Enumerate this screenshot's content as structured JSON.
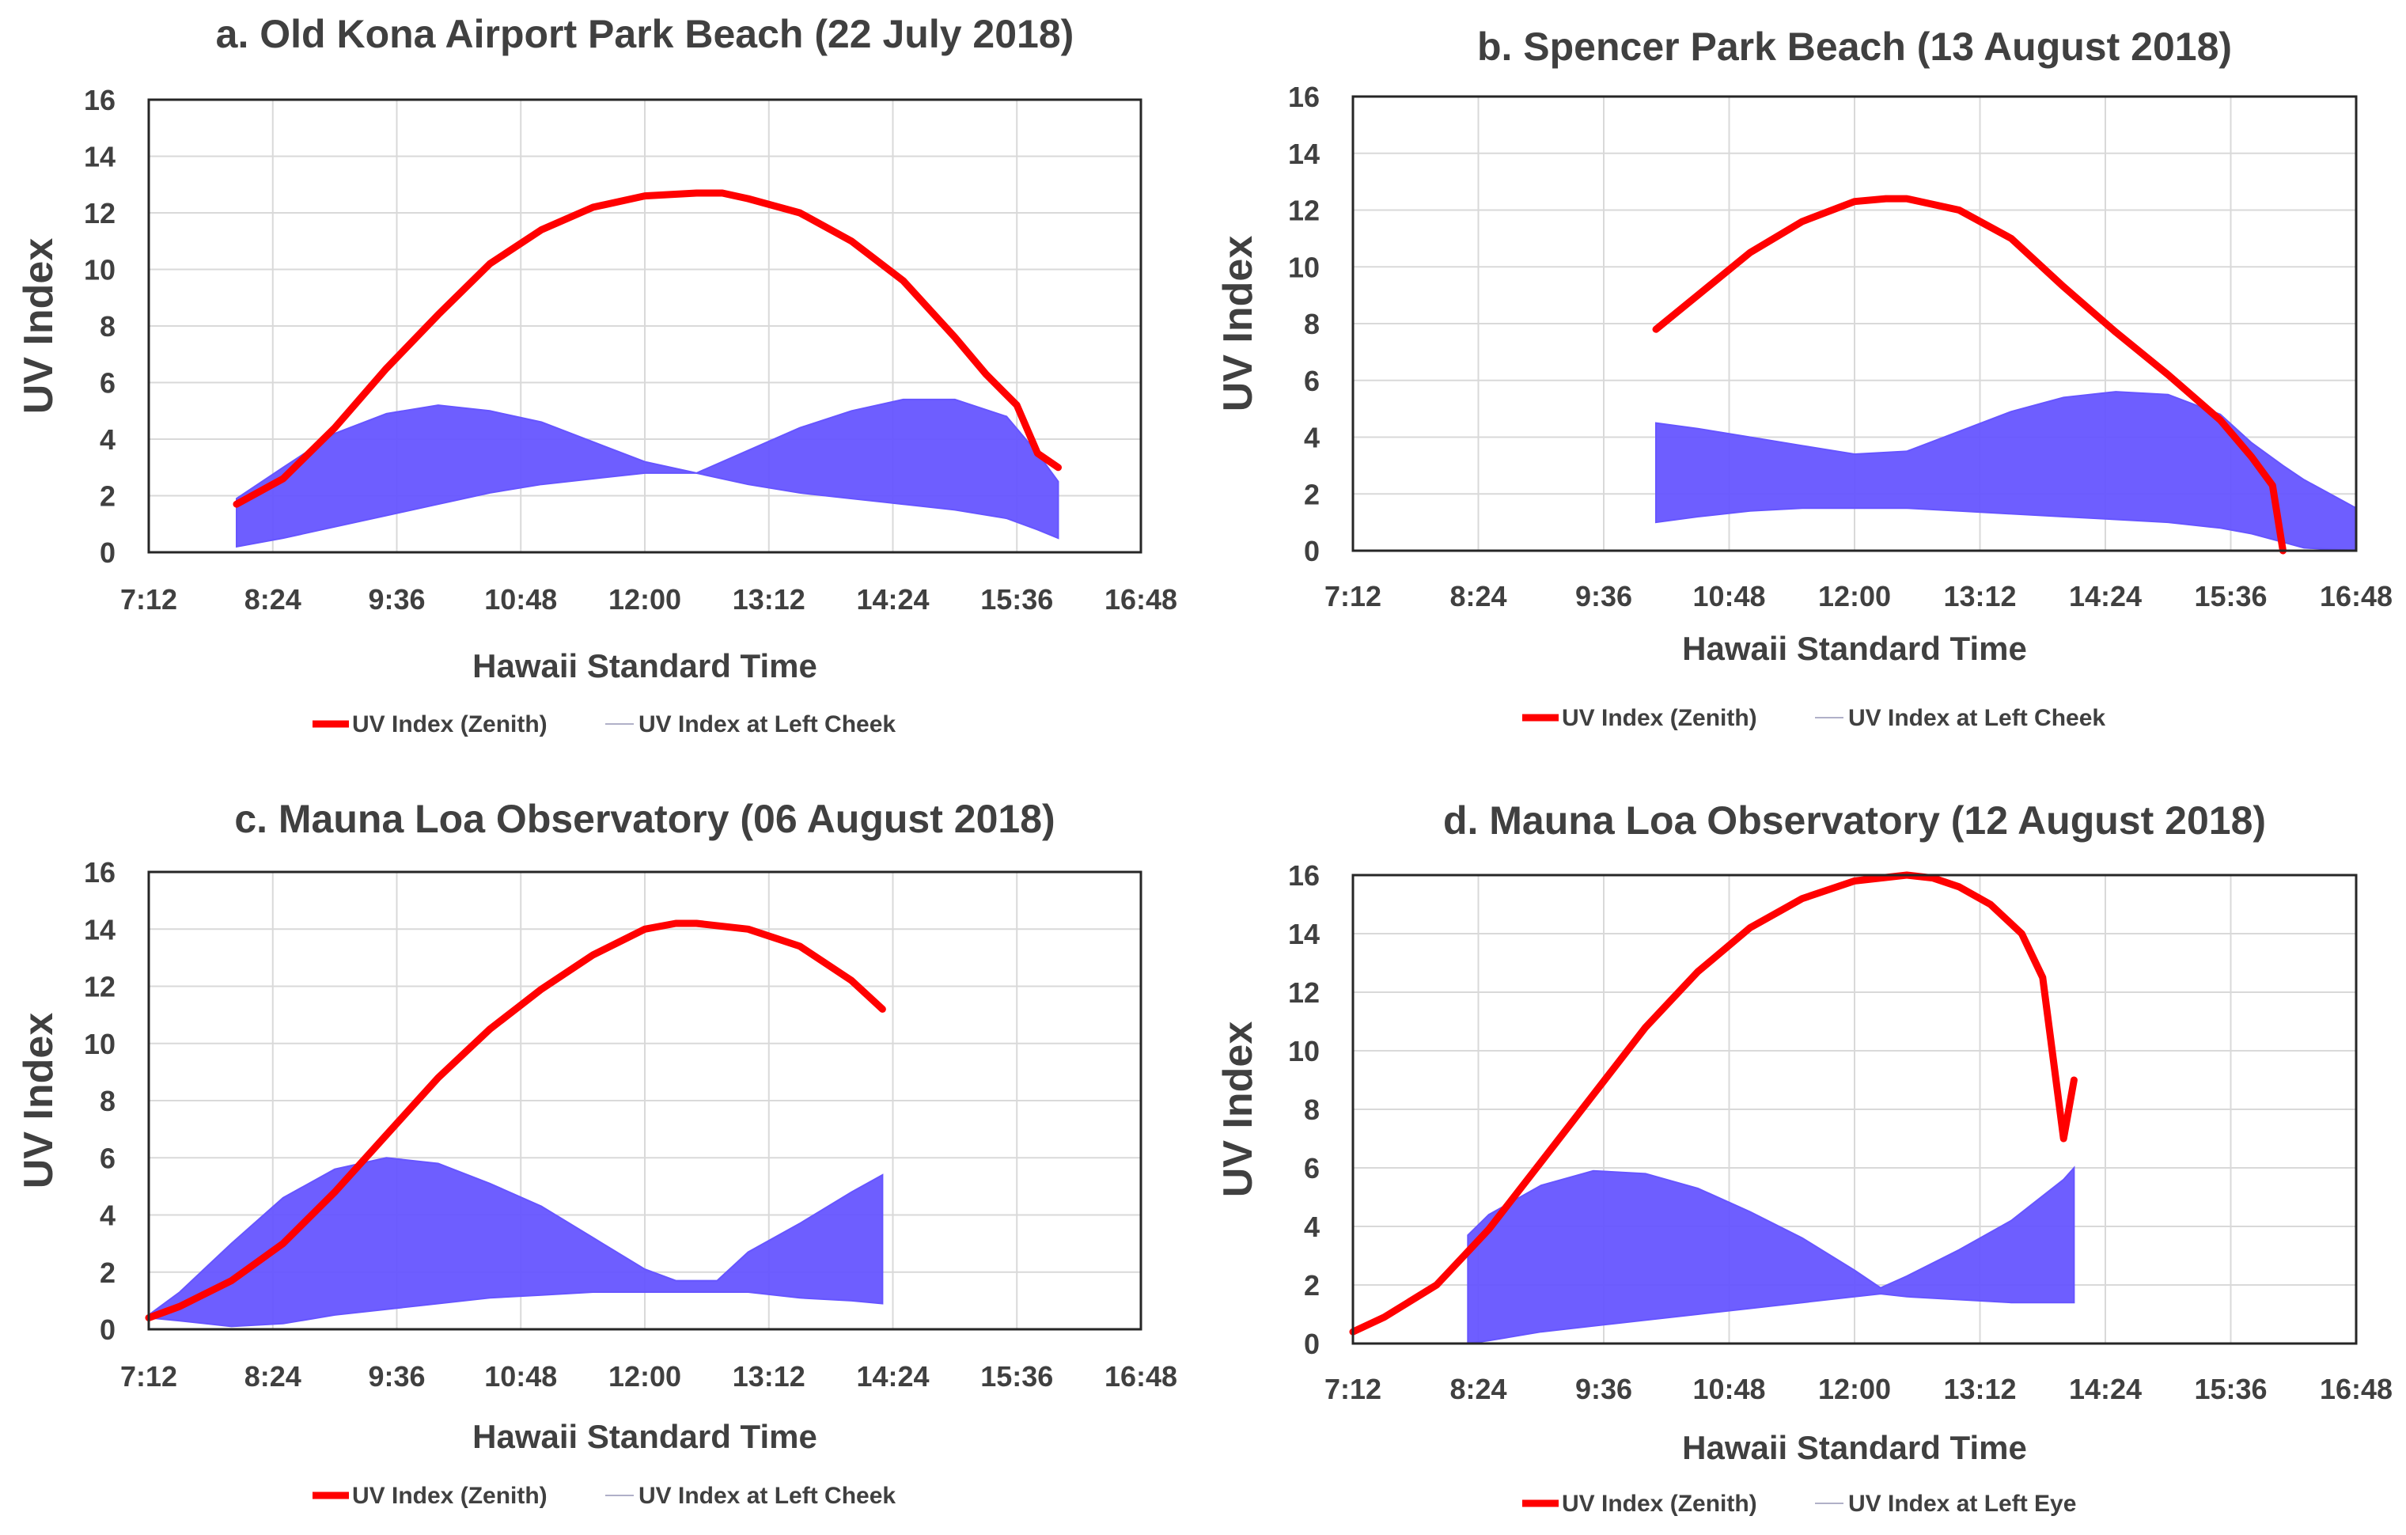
{
  "colors": {
    "zenith": "#ff0000",
    "facial": "#6655ff",
    "text": "#404040",
    "grid": "#d9d9d9"
  },
  "chart_data": [
    {
      "type": "line",
      "title": "a. Old Kona Airport Park Beach (22 July 2018)",
      "xlabel": "Hawaii Standard Time",
      "ylabel": "UV Index",
      "xticks": [
        "7:12",
        "8:24",
        "9:36",
        "10:48",
        "12:00",
        "13:12",
        "14:24",
        "15:36",
        "16:48"
      ],
      "xlim_hours": [
        7.2,
        16.8
      ],
      "ylim": [
        0,
        16
      ],
      "yticks": [
        "0",
        "2",
        "4",
        "6",
        "8",
        "10",
        "12",
        "14",
        "16"
      ],
      "legend": [
        "UV Index (Zenith)",
        "UV Index at Left Cheek"
      ],
      "series": [
        {
          "name": "UV Index (Zenith)",
          "x": [
            8.05,
            8.5,
            9.0,
            9.5,
            10.0,
            10.5,
            11.0,
            11.5,
            12.0,
            12.5,
            12.75,
            13.0,
            13.5,
            14.0,
            14.5,
            15.0,
            15.3,
            15.6,
            15.8,
            16.0
          ],
          "y": [
            1.7,
            2.6,
            4.4,
            6.5,
            8.4,
            10.2,
            11.4,
            12.2,
            12.6,
            12.7,
            12.7,
            12.5,
            12.0,
            11.0,
            9.6,
            7.6,
            6.3,
            5.2,
            3.5,
            3.0
          ]
        },
        {
          "name": "UV Index at Left Cheek",
          "x": [
            8.05,
            8.5,
            9.0,
            9.5,
            10.0,
            10.5,
            11.0,
            11.5,
            12.0,
            12.5,
            13.0,
            13.5,
            14.0,
            14.5,
            15.0,
            15.5,
            15.8,
            16.0
          ],
          "y_upper": [
            1.9,
            3.0,
            4.2,
            4.9,
            5.2,
            5.0,
            4.6,
            3.9,
            3.2,
            2.8,
            3.6,
            4.4,
            5.0,
            5.4,
            5.4,
            4.8,
            3.5,
            2.5
          ],
          "y_lower": [
            0.2,
            0.5,
            0.9,
            1.3,
            1.7,
            2.1,
            2.4,
            2.6,
            2.8,
            2.8,
            2.4,
            2.1,
            1.9,
            1.7,
            1.5,
            1.2,
            0.8,
            0.5
          ]
        }
      ]
    },
    {
      "type": "line",
      "title": "b. Spencer Park Beach (13 August 2018)",
      "xlabel": "Hawaii Standard Time",
      "ylabel": "UV Index",
      "xticks": [
        "7:12",
        "8:24",
        "9:36",
        "10:48",
        "12:00",
        "13:12",
        "14:24",
        "15:36",
        "16:48"
      ],
      "xlim_hours": [
        7.2,
        16.8
      ],
      "ylim": [
        0,
        16
      ],
      "yticks": [
        "0",
        "2",
        "4",
        "6",
        "8",
        "10",
        "12",
        "14",
        "16"
      ],
      "legend": [
        "UV Index (Zenith)",
        "UV Index at Left Cheek"
      ],
      "series": [
        {
          "name": "UV Index (Zenith)",
          "x": [
            10.1,
            10.5,
            11.0,
            11.5,
            12.0,
            12.3,
            12.5,
            13.0,
            13.5,
            14.0,
            14.5,
            15.0,
            15.5,
            15.8,
            16.0,
            16.1
          ],
          "y": [
            7.8,
            9.0,
            10.5,
            11.6,
            12.3,
            12.4,
            12.4,
            12.0,
            11.0,
            9.3,
            7.7,
            6.2,
            4.6,
            3.3,
            2.3,
            0.0
          ]
        },
        {
          "name": "UV Index at Left Cheek",
          "x": [
            10.1,
            10.5,
            11.0,
            11.5,
            12.0,
            12.5,
            13.0,
            13.5,
            14.0,
            14.5,
            15.0,
            15.5,
            15.8,
            16.1,
            16.3,
            16.8
          ],
          "y_upper": [
            4.5,
            4.3,
            4.0,
            3.7,
            3.4,
            3.5,
            4.2,
            4.9,
            5.4,
            5.6,
            5.5,
            4.8,
            3.8,
            3.0,
            2.5,
            1.5
          ],
          "y_lower": [
            1.0,
            1.2,
            1.4,
            1.5,
            1.5,
            1.5,
            1.4,
            1.3,
            1.2,
            1.1,
            1.0,
            0.8,
            0.6,
            0.3,
            0.1,
            0.0
          ]
        }
      ]
    },
    {
      "type": "line",
      "title": "c. Mauna Loa Observatory  (06 August 2018)",
      "xlabel": "Hawaii Standard Time",
      "ylabel": "UV Index",
      "xticks": [
        "7:12",
        "8:24",
        "9:36",
        "10:48",
        "12:00",
        "13:12",
        "14:24",
        "15:36",
        "16:48"
      ],
      "xlim_hours": [
        7.2,
        16.8
      ],
      "ylim": [
        0,
        16
      ],
      "yticks": [
        "0",
        "2",
        "4",
        "6",
        "8",
        "10",
        "12",
        "14",
        "16"
      ],
      "legend": [
        "UV Index (Zenith)",
        "UV Index at Left Cheek"
      ],
      "series": [
        {
          "name": "UV Index (Zenith)",
          "x": [
            7.2,
            7.5,
            8.0,
            8.5,
            9.0,
            9.5,
            10.0,
            10.5,
            11.0,
            11.5,
            12.0,
            12.3,
            12.5,
            13.0,
            13.5,
            14.0,
            14.3
          ],
          "y": [
            0.4,
            0.8,
            1.7,
            3.0,
            4.8,
            6.8,
            8.8,
            10.5,
            11.9,
            13.1,
            14.0,
            14.2,
            14.2,
            14.0,
            13.4,
            12.2,
            11.2
          ]
        },
        {
          "name": "UV Index at Left Cheek",
          "x": [
            7.2,
            7.5,
            8.0,
            8.5,
            9.0,
            9.5,
            10.0,
            10.5,
            11.0,
            11.5,
            12.0,
            12.3,
            12.7,
            13.0,
            13.5,
            14.0,
            14.3
          ],
          "y_upper": [
            0.5,
            1.3,
            3.0,
            4.6,
            5.6,
            6.0,
            5.8,
            5.1,
            4.3,
            3.2,
            2.1,
            1.7,
            1.7,
            2.7,
            3.7,
            4.8,
            5.4
          ],
          "y_lower": [
            0.4,
            0.3,
            0.1,
            0.2,
            0.5,
            0.7,
            0.9,
            1.1,
            1.2,
            1.3,
            1.3,
            1.3,
            1.3,
            1.3,
            1.1,
            1.0,
            0.9
          ]
        }
      ]
    },
    {
      "type": "line",
      "title": "d. Mauna Loa Observatory  (12 August 2018)",
      "xlabel": "Hawaii Standard Time",
      "ylabel": "UV Index",
      "xticks": [
        "7:12",
        "8:24",
        "9:36",
        "10:48",
        "12:00",
        "13:12",
        "14:24",
        "15:36",
        "16:48"
      ],
      "xlim_hours": [
        7.2,
        16.8
      ],
      "ylim": [
        0,
        16
      ],
      "yticks": [
        "0",
        "2",
        "4",
        "6",
        "8",
        "10",
        "12",
        "14",
        "16"
      ],
      "legend": [
        "UV Index (Zenith)",
        "UV Index at Left Eye"
      ],
      "series": [
        {
          "name": "UV Index (Zenith)",
          "x": [
            7.2,
            7.5,
            8.0,
            8.5,
            9.0,
            9.5,
            10.0,
            10.5,
            11.0,
            11.5,
            12.0,
            12.5,
            12.75,
            13.0,
            13.3,
            13.6,
            13.8,
            14.0,
            14.1
          ],
          "y": [
            0.4,
            0.9,
            2.0,
            3.9,
            6.2,
            8.5,
            10.8,
            12.7,
            14.2,
            15.2,
            15.8,
            16.0,
            15.9,
            15.6,
            15.0,
            14.0,
            12.5,
            7.0,
            9.0
          ]
        },
        {
          "name": "UV Index at Left Eye",
          "x": [
            8.3,
            8.5,
            9.0,
            9.5,
            10.0,
            10.5,
            11.0,
            11.5,
            12.0,
            12.25,
            12.5,
            13.0,
            13.5,
            14.0,
            14.1
          ],
          "y_upper": [
            3.7,
            4.4,
            5.4,
            5.9,
            5.8,
            5.3,
            4.5,
            3.6,
            2.5,
            1.9,
            2.3,
            3.2,
            4.2,
            5.6,
            6.0
          ],
          "y_lower": [
            0.0,
            0.1,
            0.4,
            0.6,
            0.8,
            1.0,
            1.2,
            1.4,
            1.6,
            1.7,
            1.6,
            1.5,
            1.4,
            1.4,
            1.4
          ]
        }
      ]
    }
  ]
}
